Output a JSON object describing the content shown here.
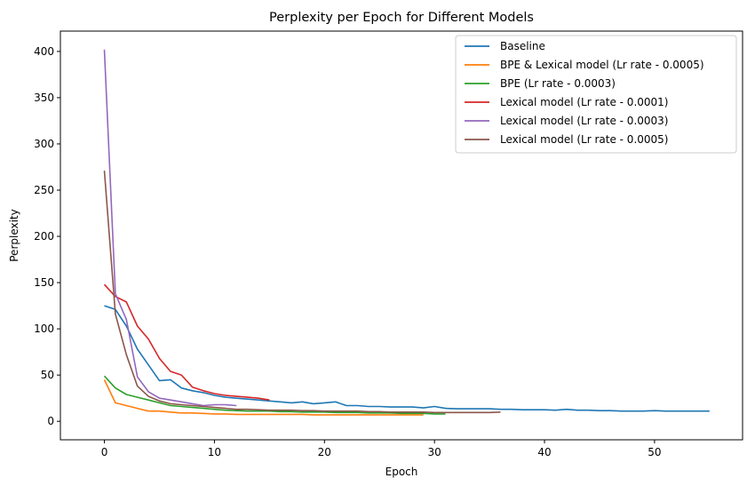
{
  "chart_data": {
    "type": "line",
    "title": "Perplexity per Epoch for Different Models",
    "xlabel": "Epoch",
    "ylabel": "Perplexity",
    "xlim": [
      -4,
      58
    ],
    "ylim": [
      -20,
      422
    ],
    "xticks": [
      0,
      10,
      20,
      30,
      40,
      50
    ],
    "yticks": [
      0,
      50,
      100,
      150,
      200,
      250,
      300,
      350,
      400
    ],
    "grid": false,
    "legend_position": "top-right",
    "series": [
      {
        "name": "Baseline",
        "color": "#1f77b4",
        "x": [
          0,
          1,
          2,
          3,
          4,
          5,
          6,
          7,
          8,
          9,
          10,
          11,
          12,
          13,
          14,
          15,
          16,
          17,
          18,
          19,
          20,
          21,
          22,
          23,
          24,
          25,
          26,
          27,
          28,
          29,
          30,
          31,
          32,
          33,
          34,
          35,
          36,
          37,
          38,
          39,
          40,
          41,
          42,
          43,
          44,
          45,
          46,
          47,
          48,
          49,
          50,
          51,
          52,
          53,
          54,
          55
        ],
        "y": [
          125,
          121,
          103,
          78,
          61,
          44,
          45,
          36,
          33,
          31,
          28,
          26,
          25,
          24,
          23,
          22,
          21,
          20,
          21,
          19,
          20,
          21,
          17,
          17,
          16,
          16,
          15.5,
          15.5,
          15.5,
          14.5,
          16,
          14,
          13.5,
          13.5,
          13.5,
          13.5,
          13,
          13,
          12.5,
          12.5,
          12.5,
          12,
          13,
          12,
          12,
          11.5,
          11.5,
          11,
          11,
          11,
          11.5,
          11,
          11,
          11,
          11,
          11
        ]
      },
      {
        "name": "BPE & Lexical model (Lr rate - 0.0005)",
        "color": "#ff7f0e",
        "x": [
          0,
          1,
          2,
          3,
          4,
          5,
          6,
          7,
          8,
          9,
          10,
          11,
          12,
          13,
          14,
          15,
          16,
          17,
          18,
          19,
          20,
          21,
          22,
          23,
          24,
          25,
          26,
          27,
          28,
          29
        ],
        "y": [
          45,
          20,
          17,
          14,
          11,
          11,
          10,
          9,
          9,
          8.5,
          8,
          8,
          7.5,
          7.5,
          7.5,
          7.5,
          7.5,
          7.5,
          7.5,
          7,
          7,
          7,
          7,
          7,
          7,
          7,
          7,
          7,
          7,
          7
        ]
      },
      {
        "name": "BPE (Lr rate - 0.0003)",
        "color": "#2ca02c",
        "x": [
          0,
          1,
          2,
          3,
          4,
          5,
          6,
          7,
          8,
          9,
          10,
          11,
          12,
          13,
          14,
          15,
          16,
          17,
          18,
          19,
          20,
          21,
          22,
          23,
          24,
          25,
          26,
          27,
          28,
          29,
          30,
          31
        ],
        "y": [
          49,
          36,
          29,
          26,
          23,
          20,
          17,
          16,
          15,
          14,
          13,
          12,
          11.5,
          11,
          11,
          11,
          10.5,
          10.5,
          10,
          10,
          10,
          9.5,
          9.5,
          9.5,
          9,
          9,
          9,
          8.5,
          8.5,
          8.5,
          8,
          8
        ]
      },
      {
        "name": "Lexical model (Lr rate - 0.0001)",
        "color": "#d62728",
        "x": [
          0,
          1,
          2,
          3,
          4,
          5,
          6,
          7,
          8,
          9,
          10,
          11,
          12,
          13,
          14,
          15
        ],
        "y": [
          148,
          135,
          129,
          103,
          89,
          68,
          54,
          50,
          37,
          33,
          30,
          28,
          27,
          26,
          25,
          23
        ]
      },
      {
        "name": "Lexical model (Lr rate - 0.0003)",
        "color": "#9467bd",
        "x": [
          0,
          1,
          2,
          3,
          4,
          5,
          6,
          7,
          8,
          9,
          10,
          11,
          12
        ],
        "y": [
          402,
          138,
          110,
          48,
          32,
          25,
          23,
          21,
          19,
          17,
          18,
          18,
          17
        ]
      },
      {
        "name": "Lexical model (Lr rate - 0.0005)",
        "color": "#8c564b",
        "x": [
          0,
          1,
          2,
          3,
          4,
          5,
          6,
          7,
          8,
          9,
          10,
          11,
          12,
          13,
          14,
          15,
          16,
          17,
          18,
          19,
          20,
          21,
          22,
          23,
          24,
          25,
          26,
          27,
          28,
          29,
          30,
          31,
          32,
          33,
          34,
          35,
          36
        ],
        "y": [
          271,
          116,
          72,
          38,
          27,
          22,
          19,
          18,
          17,
          16,
          15,
          14,
          13,
          13,
          12.5,
          12,
          12,
          12,
          11.5,
          11.5,
          11,
          11,
          11,
          11,
          10.5,
          10.5,
          10,
          10,
          10,
          10,
          9.5,
          9.5,
          9.5,
          9.5,
          9.5,
          9.5,
          10
        ]
      }
    ]
  }
}
